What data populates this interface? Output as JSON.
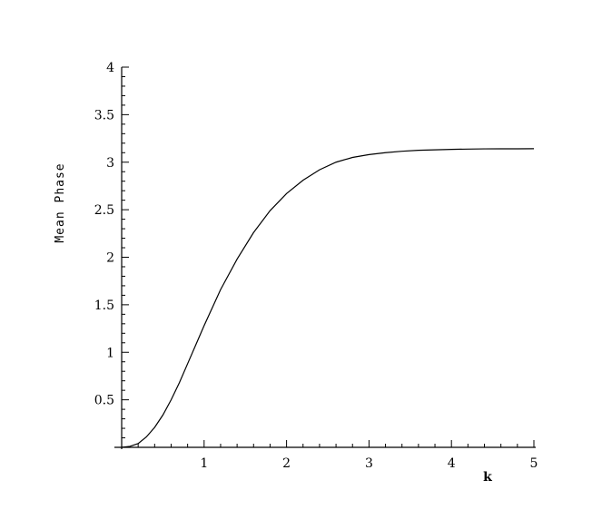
{
  "chart_data": {
    "type": "line",
    "title": "",
    "xlabel": "k",
    "ylabel": "Mean Phase",
    "xlim": [
      0,
      5
    ],
    "ylim": [
      0,
      4
    ],
    "xticks": [
      1,
      2,
      3,
      4,
      5
    ],
    "yticks": [
      0.5,
      1,
      1.5,
      2,
      2.5,
      3,
      3.5,
      4
    ],
    "xtick_labels": [
      "1",
      "2",
      "3",
      "4",
      "5"
    ],
    "ytick_labels": [
      "0.5",
      "1",
      "1.5",
      "2",
      "2.5",
      "3",
      "3.5",
      "4"
    ],
    "grid": false,
    "legend": "none",
    "series": [
      {
        "color": "#000000",
        "x": [
          0.0,
          0.1,
          0.2,
          0.3,
          0.4,
          0.5,
          0.6,
          0.7,
          0.8,
          0.9,
          1.0,
          1.2,
          1.4,
          1.6,
          1.8,
          2.0,
          2.2,
          2.4,
          2.6,
          2.8,
          3.0,
          3.2,
          3.4,
          3.6,
          3.8,
          4.0,
          4.2,
          4.4,
          4.6,
          4.8,
          5.0
        ],
        "y": [
          0.0,
          0.01,
          0.04,
          0.11,
          0.21,
          0.34,
          0.5,
          0.68,
          0.88,
          1.08,
          1.28,
          1.66,
          1.98,
          2.26,
          2.49,
          2.67,
          2.81,
          2.92,
          3.0,
          3.05,
          3.08,
          3.1,
          3.115,
          3.125,
          3.13,
          3.135,
          3.138,
          3.14,
          3.141,
          3.141,
          3.142
        ]
      }
    ]
  }
}
